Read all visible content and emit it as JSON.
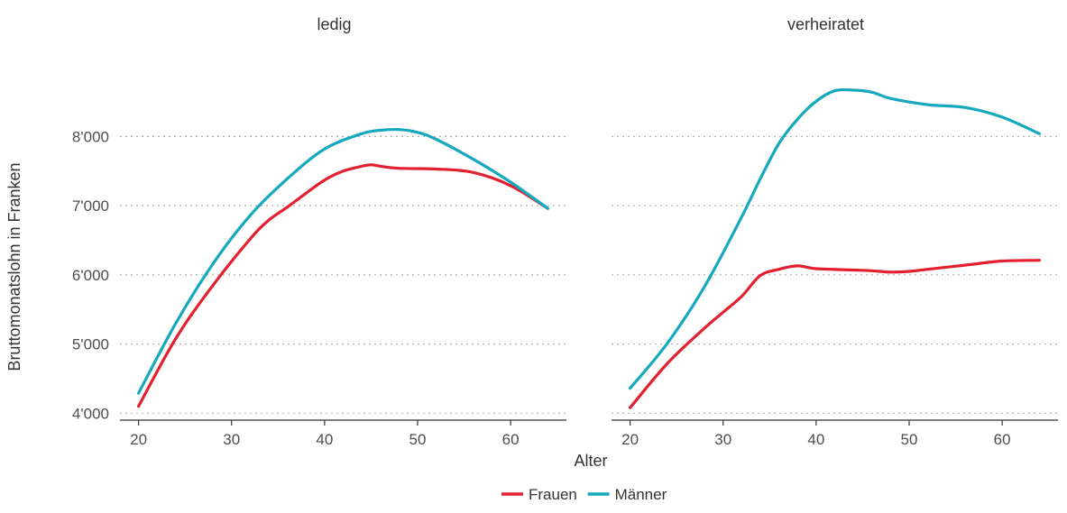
{
  "chart_data": {
    "type": "line",
    "ylabel": "Bruttomonatslohn in Franken",
    "xlabel": "Alter",
    "xlim": [
      18,
      66
    ],
    "ylim": [
      3900,
      8800
    ],
    "x_ticks": [
      20,
      30,
      40,
      50,
      60
    ],
    "x_tick_labels": [
      "20",
      "30",
      "40",
      "50",
      "60"
    ],
    "y_ticks": [
      4000,
      5000,
      6000,
      7000,
      8000
    ],
    "y_tick_labels": [
      "4'000",
      "5'000",
      "6'000",
      "7'000",
      "8'000"
    ],
    "grid": "horizontal dotted",
    "legend_position": "bottom",
    "legend": [
      {
        "name": "Frauen",
        "color": "#e3202f"
      },
      {
        "name": "Männer",
        "color": "#16a9bd"
      }
    ],
    "panels": [
      {
        "title": "ledig",
        "series": [
          {
            "name": "Frauen",
            "color": "#e3202f",
            "x": [
              20,
              24,
              28,
              32,
              34,
              36,
              38,
              40,
              42,
              44,
              45,
              46,
              48,
              52,
              56,
              60,
              64
            ],
            "y": [
              4100,
              5080,
              5850,
              6520,
              6790,
              6980,
              7180,
              7370,
              7500,
              7570,
              7590,
              7570,
              7540,
              7530,
              7480,
              7290,
              6960
            ]
          },
          {
            "name": "Männer",
            "color": "#16a9bd",
            "x": [
              20,
              24,
              28,
              32,
              36,
              40,
              44,
              46,
              48,
              50,
              52,
              56,
              60,
              64
            ],
            "y": [
              4290,
              5300,
              6160,
              6860,
              7390,
              7820,
              8040,
              8090,
              8100,
              8060,
              7960,
              7670,
              7340,
              6960
            ]
          }
        ]
      },
      {
        "title": "verheiratet",
        "series": [
          {
            "name": "Frauen",
            "color": "#e3202f",
            "x": [
              20,
              24,
              28,
              30,
              32,
              34,
              36,
              38,
              40,
              44,
              46,
              48,
              50,
              52,
              56,
              60,
              64
            ],
            "y": [
              4080,
              4720,
              5230,
              5460,
              5690,
              5990,
              6080,
              6130,
              6090,
              6070,
              6060,
              6040,
              6050,
              6080,
              6140,
              6200,
              6210
            ]
          },
          {
            "name": "Männer",
            "color": "#16a9bd",
            "x": [
              20,
              24,
              28,
              32,
              34,
              36,
              38,
              40,
              42,
              44,
              46,
              48,
              52,
              56,
              60,
              64
            ],
            "y": [
              4360,
              5010,
              5830,
              6840,
              7390,
              7900,
              8250,
              8510,
              8660,
              8670,
              8640,
              8550,
              8460,
              8420,
              8280,
              8040
            ]
          }
        ]
      }
    ]
  }
}
